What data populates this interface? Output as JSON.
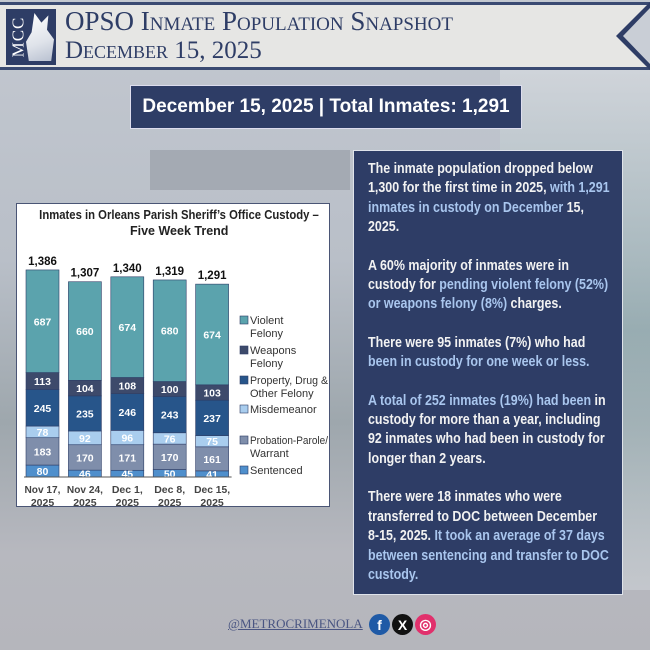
{
  "header": {
    "logo_text": "MCC",
    "title": "OPSO Inmate Population Snapshot",
    "date": "December 15, 2025"
  },
  "summary": {
    "total_label": "December 15, 2025 | Total Inmates: 1,291"
  },
  "colors": {
    "navy": "#2e3d66",
    "highlight": "#a9c6ee"
  },
  "chart_data": {
    "type": "bar",
    "stacked": true,
    "title": "Inmates in Orleans Parish Sheriff’s Office Custody – Five Week Trend",
    "title_lines": [
      "Inmates in Orleans Parish Sheriff’s Office Custody –",
      "Five Week Trend"
    ],
    "categories": [
      [
        "Nov 17,",
        "2025"
      ],
      [
        "Nov 24,",
        "2025"
      ],
      [
        "Dec 1,",
        "2025"
      ],
      [
        "Dec 8,",
        "2025"
      ],
      [
        "Dec 15,",
        "2025"
      ]
    ],
    "totals": [
      "1,386",
      "1,307",
      "1,340",
      "1,319",
      "1,291"
    ],
    "legend_placement": "right",
    "series": [
      {
        "name": "Sentenced",
        "legend": [
          "Sentenced"
        ],
        "color": "#4f8fcc",
        "label_color": "#fff",
        "values": [
          80,
          46,
          45,
          50,
          41
        ]
      },
      {
        "name": "Probation-Parole/ Warrant",
        "legend": [
          "Probation-Parole/",
          "Warrant"
        ],
        "color": "#7f8eab",
        "label_color": "#fff",
        "values": [
          183,
          170,
          171,
          170,
          161
        ]
      },
      {
        "name": "Misdemeanor",
        "legend": [
          "Misdemeanor"
        ],
        "color": "#a9cdee",
        "label_color": "#fff",
        "values": [
          78,
          92,
          96,
          76,
          75
        ]
      },
      {
        "name": "Property, Drug & Other Felony",
        "legend": [
          "Property, Drug &",
          "Other Felony"
        ],
        "color": "#27558a",
        "label_color": "#fff",
        "values": [
          245,
          235,
          246,
          243,
          237
        ]
      },
      {
        "name": "Weapons Felony",
        "legend": [
          "Weapons",
          "Felony"
        ],
        "color": "#3d4a6b",
        "label_color": "#fff",
        "values": [
          113,
          104,
          108,
          100,
          103
        ]
      },
      {
        "name": "Violent Felony",
        "legend": [
          "Violent",
          "Felony"
        ],
        "color": "#5ba3ad",
        "label_color": "#fff",
        "values": [
          687,
          660,
          674,
          680,
          674
        ]
      }
    ]
  },
  "info": [
    [
      {
        "t": "The inmate population dropped below 1,300 for the first time in 2025, ",
        "h": false
      },
      {
        "t": "with 1,291 inmates in custody on December ",
        "h": true
      },
      {
        "t": "15, 2025.",
        "h": false
      }
    ],
    [
      {
        "t": "A 60% majority of inmates were in custody for ",
        "h": false
      },
      {
        "t": "pending violent felony (52%) or weapons felony (8%) ",
        "h": true
      },
      {
        "t": "charges.",
        "h": false
      }
    ],
    [
      {
        "t": "There were 95 inmates (7%) who had ",
        "h": false
      },
      {
        "t": "been in custody for one week or less.",
        "h": true
      }
    ],
    [
      {
        "t": "A total of 252 inmates (19%) had been ",
        "h": true
      },
      {
        "t": "in custody for more than a year, including 92 inmates who had been in custody for longer than 2 years.",
        "h": false
      }
    ],
    [
      {
        "t": "There were 18 inmates who were transferred to DOC between December 8-15, 2025. ",
        "h": false
      },
      {
        "t": "It took an average of 37 days between sentencing and transfer to DOC custody.",
        "h": true
      }
    ]
  ],
  "footer": {
    "handle": "@METROCRIMENOLA",
    "social": [
      {
        "icon": "facebook-icon",
        "glyph": "f",
        "color": "#1f5aa6"
      },
      {
        "icon": "x-icon",
        "glyph": "X",
        "color": "#111"
      },
      {
        "icon": "instagram-icon",
        "glyph": "◎",
        "color": "#e1306c"
      }
    ]
  }
}
